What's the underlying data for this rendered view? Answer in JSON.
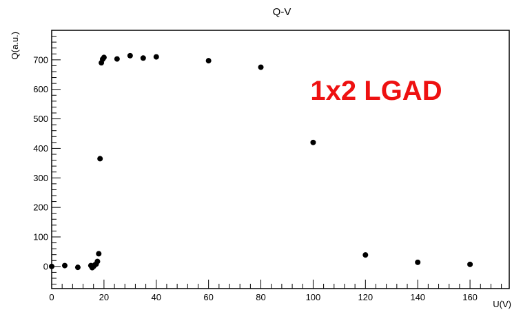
{
  "chart_data": {
    "type": "scatter",
    "title": "Q-V",
    "xlabel": "U(V)",
    "ylabel": "Q(a.u.)",
    "xlim": [
      0,
      175
    ],
    "ylim": [
      -75,
      800
    ],
    "x_ticks": [
      0,
      20,
      40,
      60,
      80,
      100,
      120,
      140,
      160
    ],
    "y_ticks": [
      0,
      100,
      200,
      300,
      400,
      500,
      600,
      700
    ],
    "grid": false,
    "annotation": {
      "text": "1x2 LGAD",
      "color": "#ee1111"
    },
    "marker_color": "#000000",
    "points": [
      {
        "x": 0,
        "y": 0
      },
      {
        "x": 5,
        "y": 3
      },
      {
        "x": 10,
        "y": -3
      },
      {
        "x": 15,
        "y": 3
      },
      {
        "x": 15.5,
        "y": -4
      },
      {
        "x": 16,
        "y": 0
      },
      {
        "x": 16.5,
        "y": 5
      },
      {
        "x": 17,
        "y": 8
      },
      {
        "x": 17.5,
        "y": 17
      },
      {
        "x": 18,
        "y": 43
      },
      {
        "x": 18.5,
        "y": 365
      },
      {
        "x": 19,
        "y": 690
      },
      {
        "x": 19.5,
        "y": 702
      },
      {
        "x": 20,
        "y": 708
      },
      {
        "x": 25,
        "y": 703
      },
      {
        "x": 30,
        "y": 714
      },
      {
        "x": 35,
        "y": 706
      },
      {
        "x": 40,
        "y": 710
      },
      {
        "x": 60,
        "y": 697
      },
      {
        "x": 80,
        "y": 675
      },
      {
        "x": 100,
        "y": 420
      },
      {
        "x": 120,
        "y": 39
      },
      {
        "x": 140,
        "y": 14
      },
      {
        "x": 160,
        "y": 7
      }
    ]
  }
}
